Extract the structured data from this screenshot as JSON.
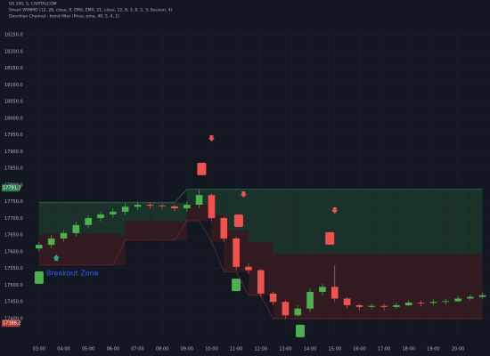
{
  "chart_data": {
    "type": "candlestick",
    "legend": [
      "US 100, 5, CAPITALCOM",
      "Smart VRMMO (12, 26, close, 9, EMA, EMA, 21, close, 12, 8, 3, 8, 5, 3, Session, 4)",
      "Donchian Channel - trend filter (Price, ema, 40, 5, 4, 2)"
    ],
    "annotation": "Breakout Zone",
    "x": [
      3,
      3.5,
      4,
      4.5,
      5,
      5.5,
      6,
      6.5,
      7,
      7.5,
      8,
      8.5,
      9,
      9.5,
      10,
      10.5,
      11,
      11.5,
      12,
      12.5,
      13,
      13.5,
      14,
      14.5,
      15,
      15.5,
      16,
      16.5,
      17,
      17.5,
      18,
      18.5,
      19,
      19.5,
      20,
      20.5,
      21
    ],
    "open": [
      17610,
      17621,
      17640,
      17656,
      17680,
      17701,
      17712,
      17720,
      17735,
      17741,
      17738,
      17736,
      17730,
      17741,
      17770,
      17701,
      17640,
      17555,
      17545,
      17475,
      17450,
      17410,
      17430,
      17480,
      17495,
      17460,
      17440,
      17435,
      17438,
      17435,
      17440,
      17448,
      17447,
      17450,
      17452,
      17460,
      17465
    ],
    "high": [
      17630,
      17650,
      17665,
      17690,
      17710,
      17720,
      17730,
      17745,
      17750,
      17748,
      17745,
      17740,
      17750,
      17785,
      17775,
      17705,
      17645,
      17565,
      17550,
      17480,
      17455,
      17440,
      17490,
      17505,
      17560,
      17465,
      17445,
      17445,
      17445,
      17448,
      17455,
      17455,
      17458,
      17460,
      17468,
      17472,
      17478
    ],
    "low": [
      17600,
      17611,
      17630,
      17646,
      17670,
      17691,
      17702,
      17710,
      17725,
      17728,
      17726,
      17720,
      17720,
      17731,
      17691,
      17630,
      17545,
      17535,
      17465,
      17440,
      17400,
      17405,
      17420,
      17470,
      17450,
      17430,
      17425,
      17428,
      17425,
      17430,
      17438,
      17437,
      17440,
      17442,
      17450,
      17455,
      17460
    ],
    "close": [
      17621,
      17640,
      17656,
      17680,
      17701,
      17712,
      17720,
      17735,
      17741,
      17738,
      17736,
      17730,
      17741,
      17770,
      17701,
      17640,
      17555,
      17545,
      17475,
      17450,
      17410,
      17430,
      17480,
      17495,
      17460,
      17440,
      17435,
      17438,
      17435,
      17440,
      17448,
      17447,
      17450,
      17452,
      17460,
      17465,
      17470
    ],
    "channel_upper": [
      17747,
      17747,
      17747,
      17747,
      17747,
      17747,
      17747,
      17747,
      17747,
      17747,
      17747,
      17747,
      17787,
      17787,
      17787,
      17787,
      17787,
      17787,
      17787,
      17787,
      17787,
      17787,
      17787,
      17787,
      17787,
      17787,
      17787,
      17787,
      17787,
      17787,
      17787,
      17787,
      17787,
      17787,
      17787,
      17787,
      17787
    ],
    "channel_lower": [
      17560,
      17560,
      17560,
      17560,
      17560,
      17560,
      17560,
      17635,
      17635,
      17635,
      17635,
      17635,
      17693,
      17693,
      17630,
      17540,
      17540,
      17470,
      17470,
      17400,
      17400,
      17400,
      17400,
      17400,
      17400,
      17400,
      17400,
      17400,
      17400,
      17400,
      17400,
      17400,
      17400,
      17400,
      17400,
      17400,
      17400
    ],
    "signals": [
      {
        "kind": "sell-arrow",
        "x": 10.0,
        "price": 17941
      },
      {
        "kind": "sell-arrow",
        "x": 11.3,
        "price": 17773
      },
      {
        "kind": "sell-arrow",
        "x": 15.0,
        "price": 17725
      },
      {
        "kind": "sell-label",
        "x": 9.6,
        "price": 17848
      },
      {
        "kind": "sell-label",
        "x": 11.1,
        "price": 17693
      },
      {
        "kind": "sell-label",
        "x": 14.8,
        "price": 17640
      },
      {
        "kind": "buy-label",
        "x": 3.0,
        "price": 17523
      },
      {
        "kind": "buy-label",
        "x": 11.0,
        "price": 17501
      },
      {
        "kind": "buy-label",
        "x": 13.6,
        "price": 17363
      },
      {
        "kind": "buy-arrow",
        "x": 3.7,
        "price": 17581
      }
    ],
    "price_labels": [
      {
        "value": 17791.3,
        "label": "17791.3",
        "color": "#2e7d4f"
      },
      {
        "value": 17386.2,
        "label": "17386.2",
        "color": "#b53a3a"
      }
    ],
    "colors": {
      "up": "#4caf50",
      "down": "#ef5350",
      "upper_fill": "#1d3a2c",
      "lower_fill": "#3a1d22"
    },
    "xlim": [
      2.5,
      21.3
    ],
    "xticks": [
      {
        "value": 3,
        "label": "03:00"
      },
      {
        "value": 4,
        "label": "04:00"
      },
      {
        "value": 5,
        "label": "05:00"
      },
      {
        "value": 6,
        "label": "06:00"
      },
      {
        "value": 7,
        "label": "07:00"
      },
      {
        "value": 8,
        "label": "08:00"
      },
      {
        "value": 9,
        "label": "09:00"
      },
      {
        "value": 10,
        "label": "10:00"
      },
      {
        "value": 11,
        "label": "11:00"
      },
      {
        "value": 12,
        "label": "12:00"
      },
      {
        "value": 13,
        "label": "13:00"
      },
      {
        "value": 14,
        "label": "14:00"
      },
      {
        "value": 15,
        "label": "15:00"
      },
      {
        "value": 16,
        "label": "16:00"
      },
      {
        "value": 17,
        "label": "17:00"
      },
      {
        "value": 18,
        "label": "18:00"
      },
      {
        "value": 19,
        "label": "19:00"
      },
      {
        "value": 20,
        "label": "20:00"
      }
    ],
    "ylim": [
      17340,
      18270
    ],
    "yticks": [
      {
        "value": 17400,
        "label": "17400.0"
      },
      {
        "value": 17450,
        "label": "17450.0"
      },
      {
        "value": 17500,
        "label": "17500.0"
      },
      {
        "value": 17550,
        "label": "17550.0"
      },
      {
        "value": 17600,
        "label": "17600.0"
      },
      {
        "value": 17650,
        "label": "17650.0"
      },
      {
        "value": 17700,
        "label": "17700.0"
      },
      {
        "value": 17750,
        "label": "17750.0"
      },
      {
        "value": 17800,
        "label": "17800.0"
      },
      {
        "value": 17850,
        "label": "17850.0"
      },
      {
        "value": 17900,
        "label": "17900.0"
      },
      {
        "value": 17950,
        "label": "17950.0"
      },
      {
        "value": 18000,
        "label": "18000.0"
      },
      {
        "value": 18050,
        "label": "18050.0"
      },
      {
        "value": 18100,
        "label": "18100.0"
      },
      {
        "value": 18150,
        "label": "18150.0"
      },
      {
        "value": 18200,
        "label": "18200.0"
      },
      {
        "value": 18250,
        "label": "18250.0"
      }
    ],
    "grid": true
  }
}
